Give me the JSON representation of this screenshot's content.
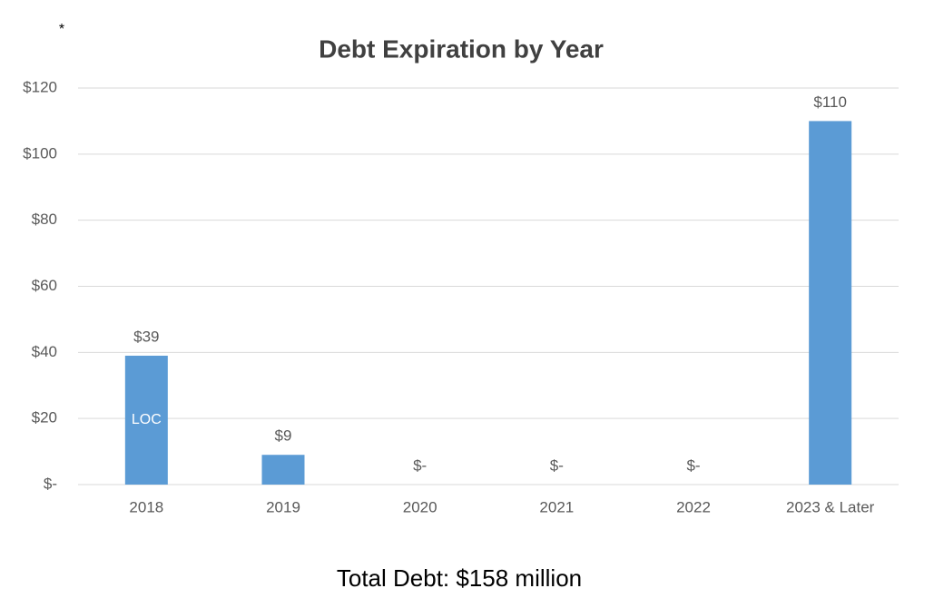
{
  "chart_data": {
    "type": "bar",
    "title": "Debt Expiration by Year",
    "note": "*",
    "categories": [
      "2018",
      "2019",
      "2020",
      "2021",
      "2022",
      "2023 & Later"
    ],
    "values": [
      39,
      9,
      0,
      0,
      0,
      110
    ],
    "value_labels": [
      "$39",
      "$9",
      "$-",
      "$-",
      "$-",
      "$110"
    ],
    "bar_annotation": "LOC",
    "color": "#5b9bd5",
    "ylim": [
      0,
      120
    ],
    "yticks": [
      {
        "value": 0,
        "label": "$-"
      },
      {
        "value": 20,
        "label": "$20"
      },
      {
        "value": 40,
        "label": "$40"
      },
      {
        "value": 60,
        "label": "$60"
      },
      {
        "value": 80,
        "label": "$80"
      },
      {
        "value": 100,
        "label": "$100"
      },
      {
        "value": 120,
        "label": "$120"
      }
    ],
    "grid": true,
    "footer": "Total Debt: $158 million"
  }
}
